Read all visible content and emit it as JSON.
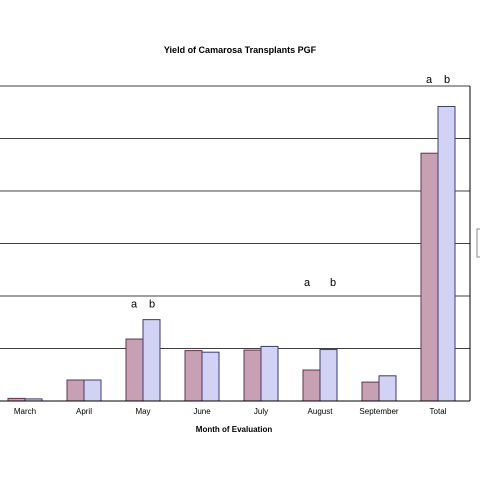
{
  "chart_data": {
    "type": "bar",
    "title": "Yield of Camarosa Transplants PGF",
    "xlabel": "Month of Evaluation",
    "ylabel": "",
    "categories": [
      "March",
      "April",
      "May",
      "June",
      "July",
      "August",
      "September",
      "Total"
    ],
    "series": [
      {
        "values": [
          5,
          40,
          118,
          96,
          97,
          59,
          36,
          472
        ]
      },
      {
        "values": [
          4,
          40,
          155,
          93,
          104,
          98,
          48,
          561
        ]
      }
    ],
    "ylim": [
      0,
      600
    ],
    "gridlines": [
      100,
      200,
      300,
      400,
      500
    ],
    "grid": true,
    "annotations": [
      {
        "category": "May",
        "labels": [
          "a",
          "b"
        ]
      },
      {
        "category": "August",
        "labels": [
          "a",
          "b"
        ]
      },
      {
        "category": "Total",
        "labels": [
          "a",
          "b"
        ]
      }
    ],
    "colors": {
      "series_0_fill": "#c7a0b3",
      "series_0_stroke": "#6e2f4e",
      "series_1_fill": "#d2d2f4",
      "series_1_stroke": "#3a3a7a"
    }
  }
}
